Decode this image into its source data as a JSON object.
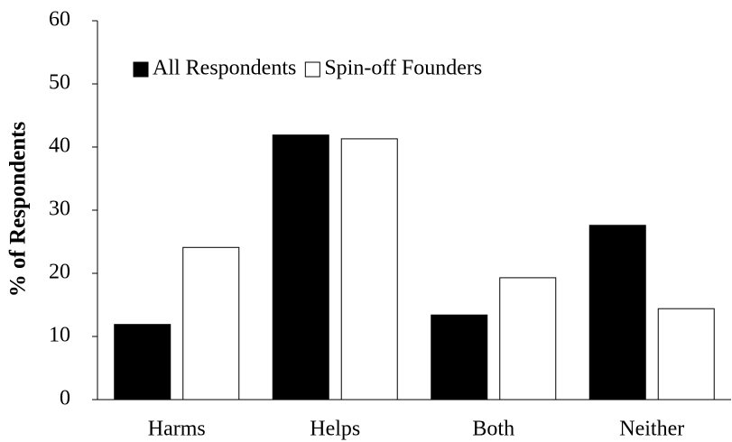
{
  "chart_data": {
    "type": "bar",
    "y_label": "% of Respondents",
    "categories": [
      "Harms",
      "Helps",
      "Both",
      "Neither"
    ],
    "series": [
      {
        "name": "All Respondents",
        "color": "#000000",
        "values": [
          11.9,
          41.9,
          13.4,
          27.6
        ]
      },
      {
        "name": "Spin-off Founders",
        "color": "#ffffff",
        "values": [
          24.1,
          41.3,
          19.3,
          14.4
        ]
      }
    ],
    "ylim": [
      0,
      60
    ],
    "yticks": [
      0,
      10,
      20,
      30,
      40,
      50,
      60
    ],
    "grid": false,
    "legend": "top-left"
  }
}
